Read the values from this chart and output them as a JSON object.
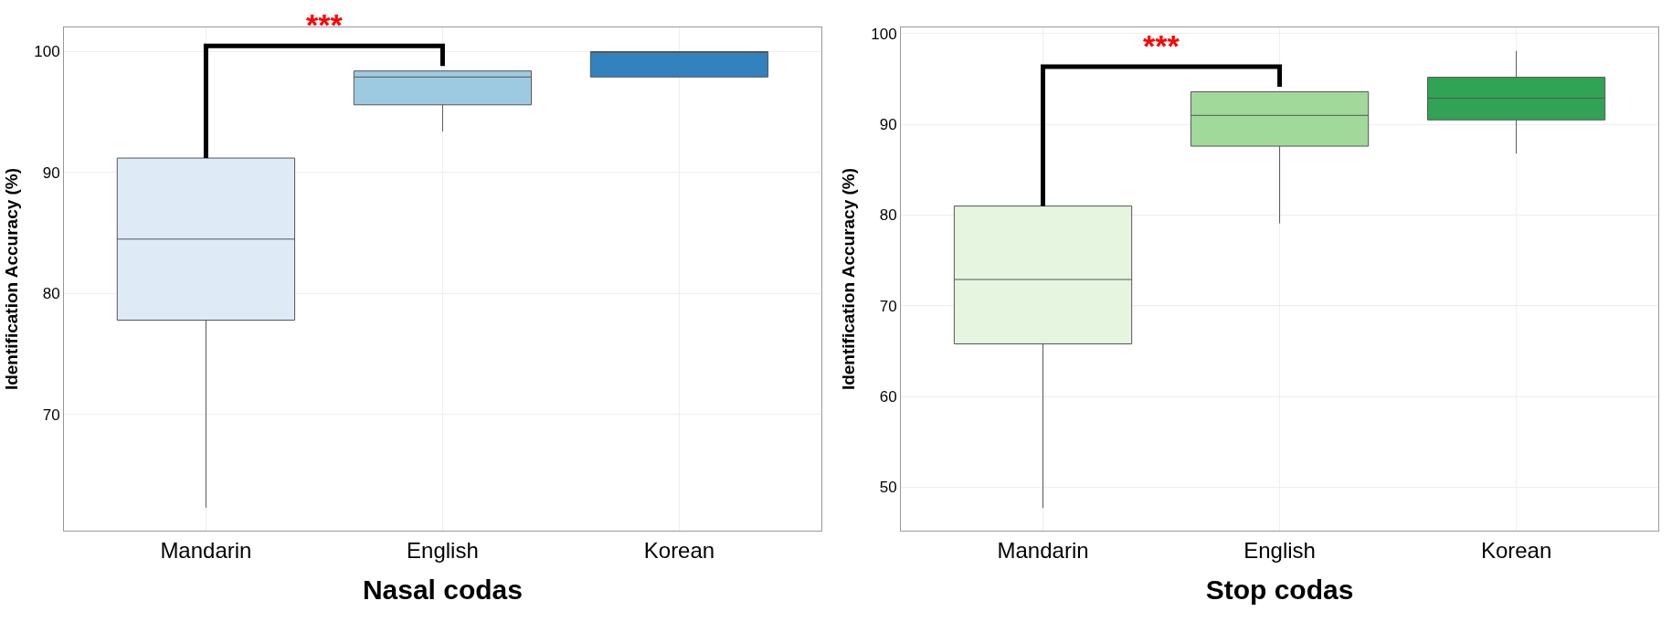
{
  "chart_data": [
    {
      "type": "box",
      "xlabel": "Nasal codas",
      "ylabel": "Identification Accuracy (%)",
      "categories": [
        "Mandarin",
        "English",
        "Korean"
      ],
      "colors": [
        "#deebf7",
        "#9ecae1",
        "#3182bd"
      ],
      "boxes": [
        {
          "low": 62.3,
          "q1": 77.8,
          "median": 84.5,
          "q3": 91.2,
          "high": 91.2
        },
        {
          "low": 93.4,
          "q1": 95.6,
          "median": 97.9,
          "q3": 98.4,
          "high": 98.4
        },
        {
          "low": 97.9,
          "q1": 97.9,
          "median": 100,
          "q3": 100,
          "high": 100
        }
      ],
      "ylim": [
        60.4,
        102
      ],
      "yticks": [
        70,
        80,
        90,
        100
      ],
      "grid": true,
      "annotations": [
        "***"
      ]
    },
    {
      "type": "box",
      "xlabel": "Stop codas",
      "ylabel": "Identification Accuracy (%)",
      "categories": [
        "Mandarin",
        "English",
        "Korean"
      ],
      "colors": [
        "#e5f5e0",
        "#a1d99b",
        "#31a354"
      ],
      "boxes": [
        {
          "low": 47.7,
          "q1": 65.8,
          "median": 72.9,
          "q3": 81.0,
          "high": 81.0
        },
        {
          "low": 79.1,
          "q1": 87.6,
          "median": 91.0,
          "q3": 93.6,
          "high": 93.6
        },
        {
          "low": 86.8,
          "q1": 90.5,
          "median": 92.9,
          "q3": 95.2,
          "high": 98.1
        }
      ],
      "ylim": [
        45.2,
        100.7
      ],
      "yticks": [
        50,
        60,
        70,
        80,
        90,
        100
      ],
      "grid": true,
      "annotations": [
        "***"
      ]
    }
  ]
}
